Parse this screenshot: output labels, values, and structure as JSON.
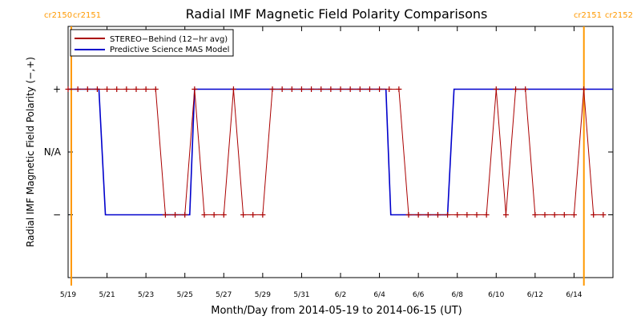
{
  "chart_data": {
    "type": "line",
    "title": "Radial IMF Magnetic Field Polarity Comparisons",
    "xlabel": "Month/Day from 2014-05-19 to 2014-06-15 (UT)",
    "ylabel": "Radial IMF Magnetic Field Polarity (−,+)",
    "xlim": [
      "2014-05-19",
      "2014-06-16"
    ],
    "ylim": [
      -2,
      2
    ],
    "x_ticks": [
      "5/19",
      "5/21",
      "5/23",
      "5/25",
      "5/27",
      "5/29",
      "5/31",
      "6/2",
      "6/4",
      "6/6",
      "6/8",
      "6/10",
      "6/12",
      "6/14"
    ],
    "x_tick_dates": [
      "2014-05-19",
      "2014-05-21",
      "2014-05-23",
      "2014-05-25",
      "2014-05-27",
      "2014-05-29",
      "2014-05-31",
      "2014-06-02",
      "2014-06-04",
      "2014-06-06",
      "2014-06-08",
      "2014-06-10",
      "2014-06-12",
      "2014-06-14"
    ],
    "y_ticks": [
      {
        "value": 1,
        "label": "+"
      },
      {
        "value": 0,
        "label": "N/A"
      },
      {
        "value": -1,
        "label": "−"
      }
    ],
    "grid": false,
    "legend_position": "top-left",
    "carrington_markers": [
      {
        "date": "2014-05-19",
        "labels": [
          "cr2150",
          "cr2151"
        ],
        "align": "left"
      },
      {
        "date": "2014-06-15",
        "labels": [
          "cr2151",
          "cr2152"
        ],
        "align": "right"
      }
    ],
    "marker_color": "#ff9900",
    "series": [
      {
        "name": "STEREO−Behind (12−hr avg)",
        "color": "#aa0000",
        "marker": "+",
        "points": [
          [
            "2014-05-19",
            1
          ],
          [
            "2014-05-19 12:00",
            1
          ],
          [
            "2014-05-20",
            1
          ],
          [
            "2014-05-20 12:00",
            1
          ],
          [
            "2014-05-21",
            1
          ],
          [
            "2014-05-21 12:00",
            1
          ],
          [
            "2014-05-22",
            1
          ],
          [
            "2014-05-22 12:00",
            1
          ],
          [
            "2014-05-23",
            1
          ],
          [
            "2014-05-23 12:00",
            1
          ],
          [
            "2014-05-24",
            -1
          ],
          [
            "2014-05-24 12:00",
            -1
          ],
          [
            "2014-05-25",
            -1
          ],
          [
            "2014-05-25 12:00",
            1
          ],
          [
            "2014-05-26",
            -1
          ],
          [
            "2014-05-26 12:00",
            -1
          ],
          [
            "2014-05-27",
            -1
          ],
          [
            "2014-05-27 12:00",
            1
          ],
          [
            "2014-05-28",
            -1
          ],
          [
            "2014-05-28 12:00",
            -1
          ],
          [
            "2014-05-29",
            -1
          ],
          [
            "2014-05-29 12:00",
            1
          ],
          [
            "2014-05-30",
            1
          ],
          [
            "2014-05-30 12:00",
            1
          ],
          [
            "2014-05-31",
            1
          ],
          [
            "2014-05-31 12:00",
            1
          ],
          [
            "2014-06-01",
            1
          ],
          [
            "2014-06-01 12:00",
            1
          ],
          [
            "2014-06-02",
            1
          ],
          [
            "2014-06-02 12:00",
            1
          ],
          [
            "2014-06-03",
            1
          ],
          [
            "2014-06-03 12:00",
            1
          ],
          [
            "2014-06-04",
            1
          ],
          [
            "2014-06-04 12:00",
            1
          ],
          [
            "2014-06-05",
            1
          ],
          [
            "2014-06-05 12:00",
            -1
          ],
          [
            "2014-06-06",
            -1
          ],
          [
            "2014-06-06 12:00",
            -1
          ],
          [
            "2014-06-07",
            -1
          ],
          [
            "2014-06-07 12:00",
            -1
          ],
          [
            "2014-06-08",
            -1
          ],
          [
            "2014-06-08 12:00",
            -1
          ],
          [
            "2014-06-09",
            -1
          ],
          [
            "2014-06-09 12:00",
            -1
          ],
          [
            "2014-06-10",
            1
          ],
          [
            "2014-06-10 12:00",
            -1
          ],
          [
            "2014-06-11",
            1
          ],
          [
            "2014-06-11 12:00",
            1
          ],
          [
            "2014-06-12",
            -1
          ],
          [
            "2014-06-12 12:00",
            -1
          ],
          [
            "2014-06-13",
            -1
          ],
          [
            "2014-06-13 12:00",
            -1
          ],
          [
            "2014-06-14",
            -1
          ],
          [
            "2014-06-14 12:00",
            1
          ],
          [
            "2014-06-15",
            -1
          ],
          [
            "2014-06-15 12:00",
            -1
          ]
        ]
      },
      {
        "name": "Predictive Science MAS Model",
        "color": "#0000cc",
        "marker": "none",
        "points": [
          [
            "2014-05-19",
            1
          ],
          [
            "2014-05-20 14:00",
            1
          ],
          [
            "2014-05-20 22:00",
            -1
          ],
          [
            "2014-05-25 06:00",
            -1
          ],
          [
            "2014-05-25 12:00",
            1
          ],
          [
            "2014-06-04 08:00",
            1
          ],
          [
            "2014-06-04 14:00",
            -1
          ],
          [
            "2014-06-07 12:00",
            -1
          ],
          [
            "2014-06-07 20:00",
            1
          ],
          [
            "2014-06-16",
            1
          ]
        ]
      }
    ]
  }
}
